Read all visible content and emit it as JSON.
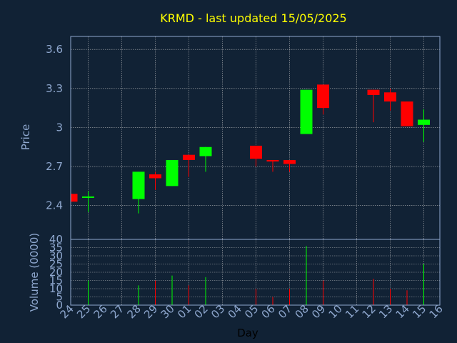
{
  "chart_data": {
    "type": "candlestick",
    "title": "KRMD - last updated 15/05/2025",
    "xlabel": "Day",
    "price_axis": {
      "label": "Price",
      "ylim": [
        2.14,
        3.7
      ],
      "ticks": [
        2.4,
        2.7,
        3,
        3.3,
        3.6
      ],
      "tick_labels": [
        "2.4",
        "2.7",
        "3",
        "3.3",
        "3.6"
      ]
    },
    "volume_axis": {
      "label": "Volume (0000)",
      "ylim": [
        0,
        40
      ],
      "ticks": [
        0,
        5,
        10,
        15,
        20,
        25,
        30,
        35,
        40
      ],
      "tick_labels": [
        "0",
        "5",
        "10",
        "15",
        "20",
        "25",
        "30",
        "35",
        "40"
      ]
    },
    "x_tick_labels": [
      "24",
      "25",
      "26",
      "27",
      "28",
      "29",
      "30",
      "01",
      "02",
      "03",
      "04",
      "05",
      "06",
      "07",
      "08",
      "09",
      "10",
      "11",
      "12",
      "13",
      "14",
      "15",
      "16"
    ],
    "candles": [
      {
        "day": "24",
        "open": 2.49,
        "high": 2.49,
        "low": 2.43,
        "close": 2.43,
        "volume": 0
      },
      {
        "day": "25",
        "open": 2.46,
        "high": 2.51,
        "low": 2.35,
        "close": 2.47,
        "volume": 15
      },
      {
        "day": "28",
        "open": 2.45,
        "high": 2.66,
        "low": 2.34,
        "close": 2.66,
        "volume": 12
      },
      {
        "day": "29",
        "open": 2.64,
        "high": 2.66,
        "low": 2.52,
        "close": 2.61,
        "volume": 15
      },
      {
        "day": "30",
        "open": 2.55,
        "high": 2.75,
        "low": 2.55,
        "close": 2.75,
        "volume": 18
      },
      {
        "day": "01",
        "open": 2.79,
        "high": 2.79,
        "low": 2.62,
        "close": 2.75,
        "volume": 12
      },
      {
        "day": "02",
        "open": 2.78,
        "high": 2.85,
        "low": 2.66,
        "close": 2.85,
        "volume": 17
      },
      {
        "day": "05",
        "open": 2.86,
        "high": 2.86,
        "low": 2.7,
        "close": 2.76,
        "volume": 10
      },
      {
        "day": "06",
        "open": 2.75,
        "high": 2.75,
        "low": 2.66,
        "close": 2.74,
        "volume": 5
      },
      {
        "day": "07",
        "open": 2.75,
        "high": 2.75,
        "low": 2.66,
        "close": 2.72,
        "volume": 10
      },
      {
        "day": "08",
        "open": 2.95,
        "high": 3.29,
        "low": 2.95,
        "close": 3.29,
        "volume": 36
      },
      {
        "day": "09",
        "open": 3.33,
        "high": 3.33,
        "low": 3.1,
        "close": 3.15,
        "volume": 15
      },
      {
        "day": "12",
        "open": 3.29,
        "high": 3.29,
        "low": 3.04,
        "close": 3.25,
        "volume": 16
      },
      {
        "day": "13",
        "open": 3.27,
        "high": 3.3,
        "low": 3.13,
        "close": 3.2,
        "volume": 10
      },
      {
        "day": "14",
        "open": 3.2,
        "high": 3.2,
        "low": 3.01,
        "close": 3.01,
        "volume": 9
      },
      {
        "day": "15",
        "open": 3.02,
        "high": 3.14,
        "low": 2.89,
        "close": 3.06,
        "volume": 25
      }
    ],
    "grid": true,
    "colors": {
      "background": "#112235",
      "up": "#00ff00",
      "down": "#ff0000",
      "title": "#ffff00",
      "axis_text": "#8fa8cf",
      "grid": "#cccccc"
    }
  }
}
